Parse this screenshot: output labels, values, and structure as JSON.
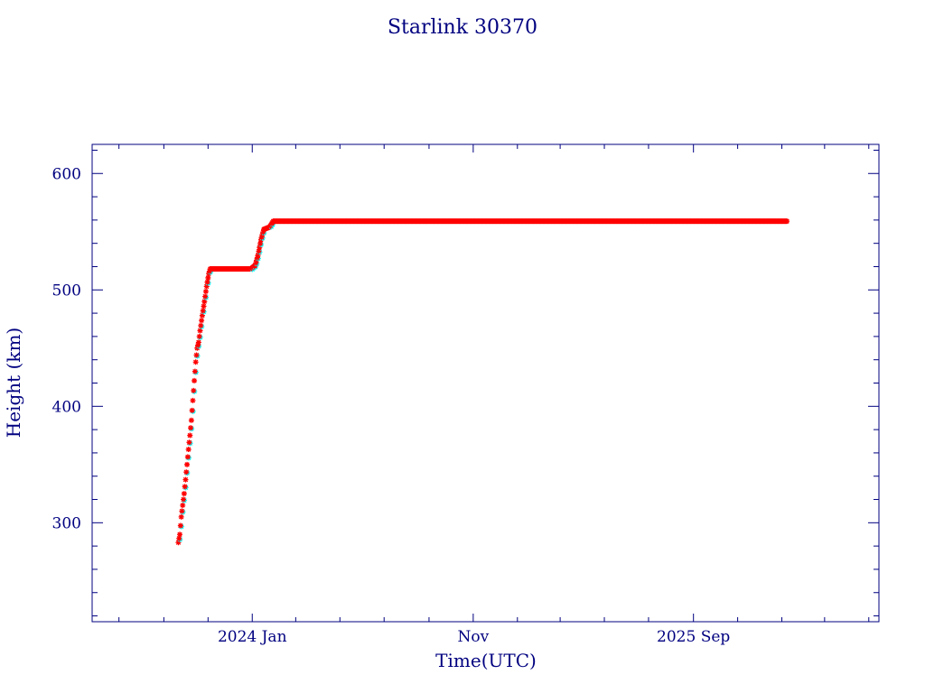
{
  "chart_data": {
    "type": "scatter",
    "title": "Starlink 30370",
    "xlabel": "Time(UTC)",
    "ylabel": "Height (km)",
    "xlim": [
      "2023-05-25",
      "2026-05-15"
    ],
    "ylim": [
      215,
      625
    ],
    "x_tick_labels": [
      {
        "date": "2024-01-01",
        "label": "2024 Jan"
      },
      {
        "date": "2024-11-01",
        "label": "Nov"
      },
      {
        "date": "2025-09-01",
        "label": "2025 Sep"
      }
    ],
    "y_ticks": [
      300,
      400,
      500,
      600
    ],
    "grid": false,
    "colors": {
      "frame": "#000080",
      "text": "#000080",
      "marker": "#ff0000",
      "marker_alt": "#00ffff"
    },
    "series": [
      {
        "marker": "star",
        "points": [
          [
            "2023-09-21",
            283
          ],
          [
            "2023-09-23",
            290
          ],
          [
            "2023-09-25",
            305
          ],
          [
            "2023-09-27",
            315
          ],
          [
            "2023-09-29",
            325
          ],
          [
            "2023-10-01",
            337
          ],
          [
            "2023-10-03",
            350
          ],
          [
            "2023-10-05",
            363
          ],
          [
            "2023-10-07",
            375
          ],
          [
            "2023-10-09",
            388
          ],
          [
            "2023-10-11",
            405
          ],
          [
            "2023-10-13",
            422
          ],
          [
            "2023-10-15",
            438
          ],
          [
            "2023-10-17",
            450
          ],
          [
            "2023-10-19",
            455
          ],
          [
            "2023-10-21",
            465
          ],
          [
            "2023-10-24",
            478
          ],
          [
            "2023-10-27",
            490
          ],
          [
            "2023-10-30",
            503
          ],
          [
            "2023-11-02",
            514
          ],
          [
            "2023-11-04",
            518
          ],
          [
            "2023-11-20",
            518
          ],
          [
            "2023-12-10",
            518
          ],
          [
            "2023-12-30",
            518
          ],
          [
            "2024-01-05",
            521
          ],
          [
            "2024-01-09",
            530
          ],
          [
            "2024-01-13",
            543
          ],
          [
            "2024-01-17",
            552
          ],
          [
            "2024-01-25",
            554
          ],
          [
            "2024-01-30",
            559
          ],
          [
            "2024-03-01",
            559
          ],
          [
            "2024-05-01",
            559
          ],
          [
            "2024-07-01",
            559
          ],
          [
            "2024-09-01",
            559
          ],
          [
            "2024-11-01",
            559
          ],
          [
            "2025-01-01",
            559
          ],
          [
            "2025-03-01",
            559
          ],
          [
            "2025-05-01",
            559
          ],
          [
            "2025-07-01",
            559
          ],
          [
            "2025-09-01",
            559
          ],
          [
            "2025-11-01",
            559
          ],
          [
            "2026-01-08",
            559
          ]
        ]
      }
    ]
  }
}
